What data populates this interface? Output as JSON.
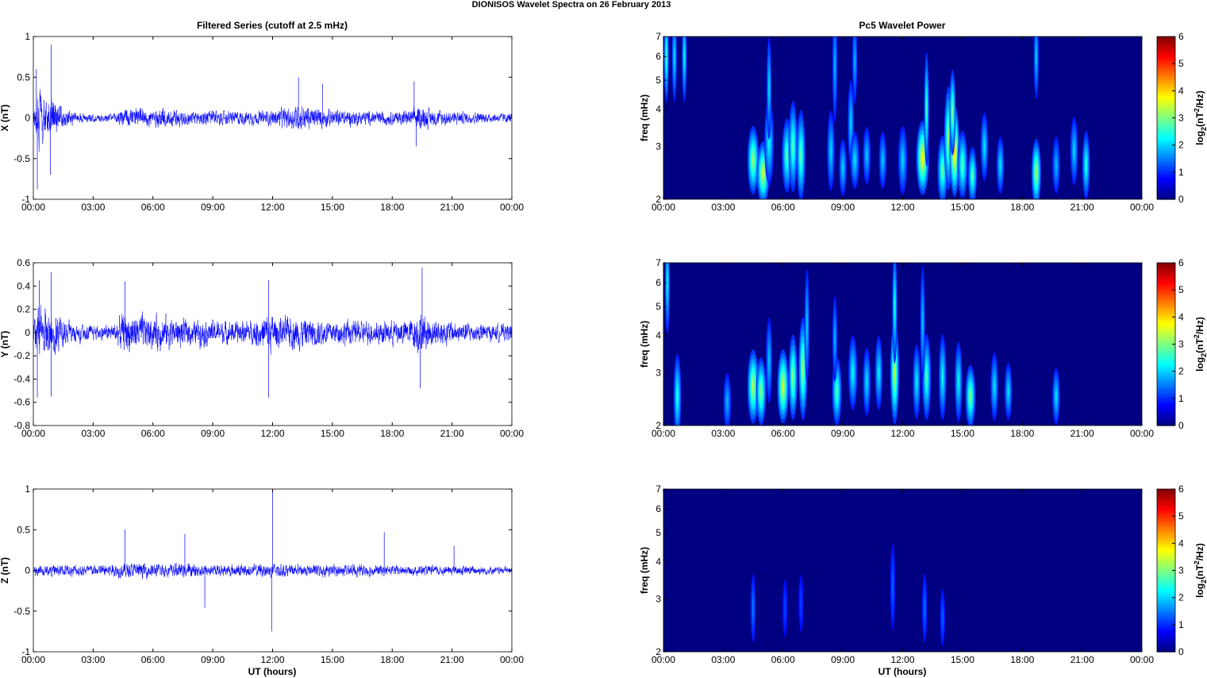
{
  "figure": {
    "title": "DIONISOS Wavelet Spectra on 26 February  2013",
    "left_column_title": "Filtered Series (cutoff at 2.5 mHz)",
    "right_column_title": "Pc5 Wavelet Power",
    "xlabel": "UT (hours)"
  },
  "chart_data": [
    {
      "type": "line",
      "panel": "X",
      "ylabel": "X (nT)",
      "xlim": [
        0,
        24
      ],
      "ylim": [
        -1,
        1
      ],
      "yticks": [
        "1",
        "0.5",
        "0",
        "-0.5",
        "-1"
      ],
      "xticks": [
        "00:00",
        "03:00",
        "06:00",
        "09:00",
        "12:00",
        "15:00",
        "18:00",
        "21:00",
        "00:00"
      ],
      "series_color": "#0000ff",
      "envelope": {
        "hours": [
          0,
          0.3,
          0.5,
          1,
          1.5,
          2,
          3,
          4,
          4.5,
          5,
          6,
          7,
          8,
          9,
          10,
          11,
          12,
          13,
          13.5,
          14,
          15,
          16,
          17,
          18,
          19,
          19.3,
          20,
          21,
          22,
          23,
          24
        ],
        "amplitude": [
          0.15,
          0.6,
          0.5,
          0.4,
          0.2,
          0.12,
          0.09,
          0.09,
          0.22,
          0.2,
          0.2,
          0.2,
          0.14,
          0.16,
          0.14,
          0.14,
          0.16,
          0.24,
          0.28,
          0.22,
          0.18,
          0.16,
          0.14,
          0.14,
          0.16,
          0.26,
          0.18,
          0.14,
          0.12,
          0.1,
          0.1
        ]
      },
      "peaks": [
        {
          "x": 0.15,
          "y": 0.6
        },
        {
          "x": 0.2,
          "y": -0.88
        },
        {
          "x": 0.9,
          "y": 0.9
        },
        {
          "x": 0.85,
          "y": -0.7
        },
        {
          "x": 13.3,
          "y": 0.5
        },
        {
          "x": 14.5,
          "y": 0.42
        },
        {
          "x": 19.1,
          "y": 0.45
        },
        {
          "x": 19.2,
          "y": -0.35
        }
      ]
    },
    {
      "type": "line",
      "panel": "Y",
      "ylabel": "Y (nT)",
      "xlim": [
        0,
        24
      ],
      "ylim": [
        -0.8,
        0.6
      ],
      "yticks": [
        "0.6",
        "0.4",
        "0.2",
        "0",
        "-0.2",
        "-0.4",
        "-0.6",
        "-0.8"
      ],
      "xticks": [
        "00:00",
        "03:00",
        "06:00",
        "09:00",
        "12:00",
        "15:00",
        "18:00",
        "21:00",
        "00:00"
      ],
      "series_color": "#0000ff",
      "envelope": {
        "hours": [
          0,
          0.3,
          0.5,
          1,
          1.5,
          2,
          3,
          4,
          4.5,
          5,
          6,
          7,
          8,
          9,
          10,
          11,
          11.8,
          12.5,
          13,
          14,
          15,
          16,
          17,
          18,
          19,
          19.3,
          20,
          21,
          22,
          23,
          24
        ],
        "amplitude": [
          0.2,
          0.4,
          0.35,
          0.35,
          0.2,
          0.15,
          0.1,
          0.12,
          0.28,
          0.26,
          0.24,
          0.22,
          0.18,
          0.18,
          0.16,
          0.18,
          0.28,
          0.2,
          0.24,
          0.2,
          0.18,
          0.18,
          0.16,
          0.18,
          0.2,
          0.3,
          0.22,
          0.16,
          0.14,
          0.12,
          0.12
        ]
      },
      "peaks": [
        {
          "x": 0.2,
          "y": -0.56
        },
        {
          "x": 0.3,
          "y": 0.45
        },
        {
          "x": 0.9,
          "y": 0.52
        },
        {
          "x": 0.9,
          "y": -0.55
        },
        {
          "x": 4.6,
          "y": 0.44
        },
        {
          "x": 11.8,
          "y": 0.45
        },
        {
          "x": 11.8,
          "y": -0.56
        },
        {
          "x": 19.5,
          "y": 0.56
        },
        {
          "x": 19.4,
          "y": -0.48
        }
      ]
    },
    {
      "type": "line",
      "panel": "Z",
      "ylabel": "Z (nT)",
      "xlim": [
        0,
        24
      ],
      "ylim": [
        -1,
        1
      ],
      "yticks": [
        "1",
        "0.5",
        "0",
        "-0.5",
        "-1"
      ],
      "xticks": [
        "00:00",
        "03:00",
        "06:00",
        "09:00",
        "12:00",
        "15:00",
        "18:00",
        "21:00",
        "00:00"
      ],
      "series_color": "#0000ff",
      "envelope": {
        "hours": [
          0,
          1,
          2,
          3,
          4,
          5,
          6,
          7,
          8,
          9,
          10,
          11,
          12,
          13,
          14,
          15,
          16,
          17,
          18,
          19,
          20,
          21,
          22,
          23,
          24
        ],
        "amplitude": [
          0.1,
          0.12,
          0.12,
          0.12,
          0.14,
          0.16,
          0.14,
          0.14,
          0.14,
          0.12,
          0.12,
          0.12,
          0.16,
          0.12,
          0.12,
          0.12,
          0.12,
          0.12,
          0.1,
          0.1,
          0.1,
          0.1,
          0.1,
          0.08,
          0.08
        ]
      },
      "peaks": [
        {
          "x": 4.6,
          "y": 0.5
        },
        {
          "x": 7.6,
          "y": 0.45
        },
        {
          "x": 8.6,
          "y": -0.46
        },
        {
          "x": 12.0,
          "y": 0.97
        },
        {
          "x": 11.95,
          "y": -0.75
        },
        {
          "x": 17.6,
          "y": 0.47
        },
        {
          "x": 21.1,
          "y": 0.3
        }
      ]
    },
    {
      "type": "heatmap",
      "panel": "Pc5 X",
      "ylabel": "freq (mHz)",
      "xlim": [
        0,
        24
      ],
      "ylim": [
        2,
        7
      ],
      "yscale": "log",
      "yticks": [
        "7",
        "6",
        "5",
        "4",
        "3",
        "2"
      ],
      "xticks": [
        "00:00",
        "03:00",
        "06:00",
        "09:00",
        "12:00",
        "15:00",
        "18:00",
        "21:00",
        "00:00"
      ],
      "colorbar": {
        "label": "log2(nT2/Hz)",
        "range": [
          0,
          6
        ],
        "ticks": [
          "6",
          "5",
          "4",
          "3",
          "2",
          "1",
          "0"
        ]
      },
      "blobs": [
        {
          "t": 0.15,
          "f": 6.0,
          "power": 2.2,
          "dt": 0.05,
          "df": 0.16
        },
        {
          "t": 0.55,
          "f": 6.0,
          "power": 1.6,
          "dt": 0.05,
          "df": 0.16
        },
        {
          "t": 1.05,
          "f": 6.0,
          "power": 1.8,
          "dt": 0.06,
          "df": 0.16
        },
        {
          "t": 4.5,
          "f": 2.7,
          "power": 2.8,
          "dt": 0.18,
          "df": 0.12
        },
        {
          "t": 5.0,
          "f": 2.45,
          "power": 3.2,
          "dt": 0.2,
          "df": 0.11
        },
        {
          "t": 5.3,
          "f": 3.1,
          "power": 1.8,
          "dt": 0.15,
          "df": 0.15
        },
        {
          "t": 5.3,
          "f": 4.7,
          "power": 1.6,
          "dt": 0.05,
          "df": 0.18
        },
        {
          "t": 6.2,
          "f": 2.8,
          "power": 2.3,
          "dt": 0.16,
          "df": 0.13
        },
        {
          "t": 6.5,
          "f": 3.0,
          "power": 2.3,
          "dt": 0.14,
          "df": 0.16
        },
        {
          "t": 6.9,
          "f": 2.8,
          "power": 2.4,
          "dt": 0.14,
          "df": 0.16
        },
        {
          "t": 8.4,
          "f": 2.9,
          "power": 1.5,
          "dt": 0.12,
          "df": 0.14
        },
        {
          "t": 8.6,
          "f": 5.6,
          "power": 1.3,
          "dt": 0.05,
          "df": 0.2
        },
        {
          "t": 9.0,
          "f": 2.55,
          "power": 1.5,
          "dt": 0.12,
          "df": 0.1
        },
        {
          "t": 9.4,
          "f": 3.6,
          "power": 1.5,
          "dt": 0.1,
          "df": 0.15
        },
        {
          "t": 9.6,
          "f": 2.7,
          "power": 1.6,
          "dt": 0.14,
          "df": 0.1
        },
        {
          "t": 9.6,
          "f": 5.8,
          "power": 1.3,
          "dt": 0.05,
          "df": 0.15
        },
        {
          "t": 10.2,
          "f": 2.8,
          "power": 1.4,
          "dt": 0.12,
          "df": 0.1
        },
        {
          "t": 11.0,
          "f": 2.7,
          "power": 1.4,
          "dt": 0.12,
          "df": 0.1
        },
        {
          "t": 12.0,
          "f": 2.7,
          "power": 1.5,
          "dt": 0.14,
          "df": 0.12
        },
        {
          "t": 13.0,
          "f": 2.75,
          "power": 3.5,
          "dt": 0.2,
          "df": 0.13
        },
        {
          "t": 13.2,
          "f": 4.0,
          "power": 2.2,
          "dt": 0.08,
          "df": 0.2
        },
        {
          "t": 14.0,
          "f": 2.5,
          "power": 2.4,
          "dt": 0.16,
          "df": 0.12
        },
        {
          "t": 14.3,
          "f": 3.2,
          "power": 2.8,
          "dt": 0.14,
          "df": 0.18
        },
        {
          "t": 14.6,
          "f": 2.9,
          "power": 3.8,
          "dt": 0.16,
          "df": 0.16
        },
        {
          "t": 14.5,
          "f": 3.9,
          "power": 2.6,
          "dt": 0.1,
          "df": 0.15
        },
        {
          "t": 15.0,
          "f": 2.6,
          "power": 2.3,
          "dt": 0.16,
          "df": 0.12
        },
        {
          "t": 15.5,
          "f": 2.4,
          "power": 2.3,
          "dt": 0.14,
          "df": 0.1
        },
        {
          "t": 16.1,
          "f": 3.0,
          "power": 1.6,
          "dt": 0.12,
          "df": 0.12
        },
        {
          "t": 16.9,
          "f": 2.6,
          "power": 1.6,
          "dt": 0.12,
          "df": 0.1
        },
        {
          "t": 18.7,
          "f": 2.45,
          "power": 2.9,
          "dt": 0.15,
          "df": 0.12
        },
        {
          "t": 18.7,
          "f": 6.0,
          "power": 1.5,
          "dt": 0.05,
          "df": 0.15
        },
        {
          "t": 19.7,
          "f": 2.6,
          "power": 1.3,
          "dt": 0.12,
          "df": 0.1
        },
        {
          "t": 20.6,
          "f": 2.9,
          "power": 1.5,
          "dt": 0.12,
          "df": 0.12
        },
        {
          "t": 21.2,
          "f": 2.6,
          "power": 2.0,
          "dt": 0.12,
          "df": 0.12
        }
      ]
    },
    {
      "type": "heatmap",
      "panel": "Pc5 Y",
      "ylabel": "freq (mHz)",
      "xlim": [
        0,
        24
      ],
      "ylim": [
        2,
        7
      ],
      "yscale": "log",
      "yticks": [
        "7",
        "6",
        "5",
        "4",
        "3",
        "2"
      ],
      "xticks": [
        "00:00",
        "03:00",
        "06:00",
        "09:00",
        "12:00",
        "15:00",
        "18:00",
        "21:00",
        "00:00"
      ],
      "colorbar": {
        "label": "log2(nT2/Hz)",
        "range": [
          0,
          6
        ],
        "ticks": [
          "6",
          "5",
          "4",
          "3",
          "2",
          "1",
          "0"
        ]
      },
      "blobs": [
        {
          "t": 0.2,
          "f": 6.0,
          "power": 1.8,
          "dt": 0.05,
          "df": 0.18
        },
        {
          "t": 0.7,
          "f": 2.5,
          "power": 2.0,
          "dt": 0.12,
          "df": 0.15
        },
        {
          "t": 3.2,
          "f": 2.4,
          "power": 1.3,
          "dt": 0.12,
          "df": 0.1
        },
        {
          "t": 4.5,
          "f": 2.7,
          "power": 3.0,
          "dt": 0.18,
          "df": 0.13
        },
        {
          "t": 4.9,
          "f": 2.6,
          "power": 2.7,
          "dt": 0.16,
          "df": 0.12
        },
        {
          "t": 5.3,
          "f": 3.3,
          "power": 1.4,
          "dt": 0.1,
          "df": 0.15
        },
        {
          "t": 6.0,
          "f": 2.7,
          "power": 3.2,
          "dt": 0.18,
          "df": 0.13
        },
        {
          "t": 6.5,
          "f": 2.9,
          "power": 2.7,
          "dt": 0.14,
          "df": 0.15
        },
        {
          "t": 7.0,
          "f": 3.1,
          "power": 2.8,
          "dt": 0.14,
          "df": 0.18
        },
        {
          "t": 7.2,
          "f": 4.3,
          "power": 1.5,
          "dt": 0.06,
          "df": 0.2
        },
        {
          "t": 8.7,
          "f": 2.6,
          "power": 2.3,
          "dt": 0.15,
          "df": 0.12
        },
        {
          "t": 8.6,
          "f": 3.9,
          "power": 1.3,
          "dt": 0.06,
          "df": 0.15
        },
        {
          "t": 9.5,
          "f": 3.0,
          "power": 1.8,
          "dt": 0.14,
          "df": 0.13
        },
        {
          "t": 10.2,
          "f": 2.8,
          "power": 1.6,
          "dt": 0.12,
          "df": 0.12
        },
        {
          "t": 10.8,
          "f": 3.0,
          "power": 1.7,
          "dt": 0.12,
          "df": 0.13
        },
        {
          "t": 11.6,
          "f": 3.0,
          "power": 3.0,
          "dt": 0.14,
          "df": 0.18
        },
        {
          "t": 11.6,
          "f": 5.0,
          "power": 2.0,
          "dt": 0.06,
          "df": 0.2
        },
        {
          "t": 12.7,
          "f": 2.8,
          "power": 1.7,
          "dt": 0.12,
          "df": 0.13
        },
        {
          "t": 13.2,
          "f": 2.9,
          "power": 2.2,
          "dt": 0.14,
          "df": 0.15
        },
        {
          "t": 13.0,
          "f": 4.4,
          "power": 1.4,
          "dt": 0.06,
          "df": 0.2
        },
        {
          "t": 14.0,
          "f": 2.9,
          "power": 1.8,
          "dt": 0.12,
          "df": 0.15
        },
        {
          "t": 14.8,
          "f": 2.8,
          "power": 1.8,
          "dt": 0.12,
          "df": 0.14
        },
        {
          "t": 15.4,
          "f": 2.5,
          "power": 2.6,
          "dt": 0.16,
          "df": 0.11
        },
        {
          "t": 16.6,
          "f": 2.7,
          "power": 1.6,
          "dt": 0.12,
          "df": 0.12
        },
        {
          "t": 17.3,
          "f": 2.6,
          "power": 1.6,
          "dt": 0.12,
          "df": 0.1
        },
        {
          "t": 19.7,
          "f": 2.5,
          "power": 1.6,
          "dt": 0.12,
          "df": 0.1
        }
      ]
    },
    {
      "type": "heatmap",
      "panel": "Pc5 Z",
      "ylabel": "freq (mHz)",
      "xlim": [
        0,
        24
      ],
      "ylim": [
        2,
        7
      ],
      "yscale": "log",
      "yticks": [
        "7",
        "6",
        "5",
        "4",
        "3",
        "2"
      ],
      "xticks": [
        "00:00",
        "03:00",
        "06:00",
        "09:00",
        "12:00",
        "15:00",
        "18:00",
        "21:00",
        "00:00"
      ],
      "colorbar": {
        "label": "log2(nT2/Hz)",
        "range": [
          0,
          6
        ],
        "ticks": [
          "6",
          "5",
          "4",
          "3",
          "2",
          "1",
          "0"
        ]
      },
      "blobs": [
        {
          "t": 4.5,
          "f": 2.8,
          "power": 0.9,
          "dt": 0.08,
          "df": 0.12
        },
        {
          "t": 6.1,
          "f": 2.8,
          "power": 0.5,
          "dt": 0.06,
          "df": 0.1
        },
        {
          "t": 6.9,
          "f": 2.9,
          "power": 0.5,
          "dt": 0.06,
          "df": 0.1
        },
        {
          "t": 11.5,
          "f": 3.3,
          "power": 0.7,
          "dt": 0.06,
          "df": 0.15
        },
        {
          "t": 13.1,
          "f": 2.8,
          "power": 0.8,
          "dt": 0.08,
          "df": 0.12
        },
        {
          "t": 14.0,
          "f": 2.6,
          "power": 0.7,
          "dt": 0.08,
          "df": 0.1
        }
      ]
    }
  ]
}
